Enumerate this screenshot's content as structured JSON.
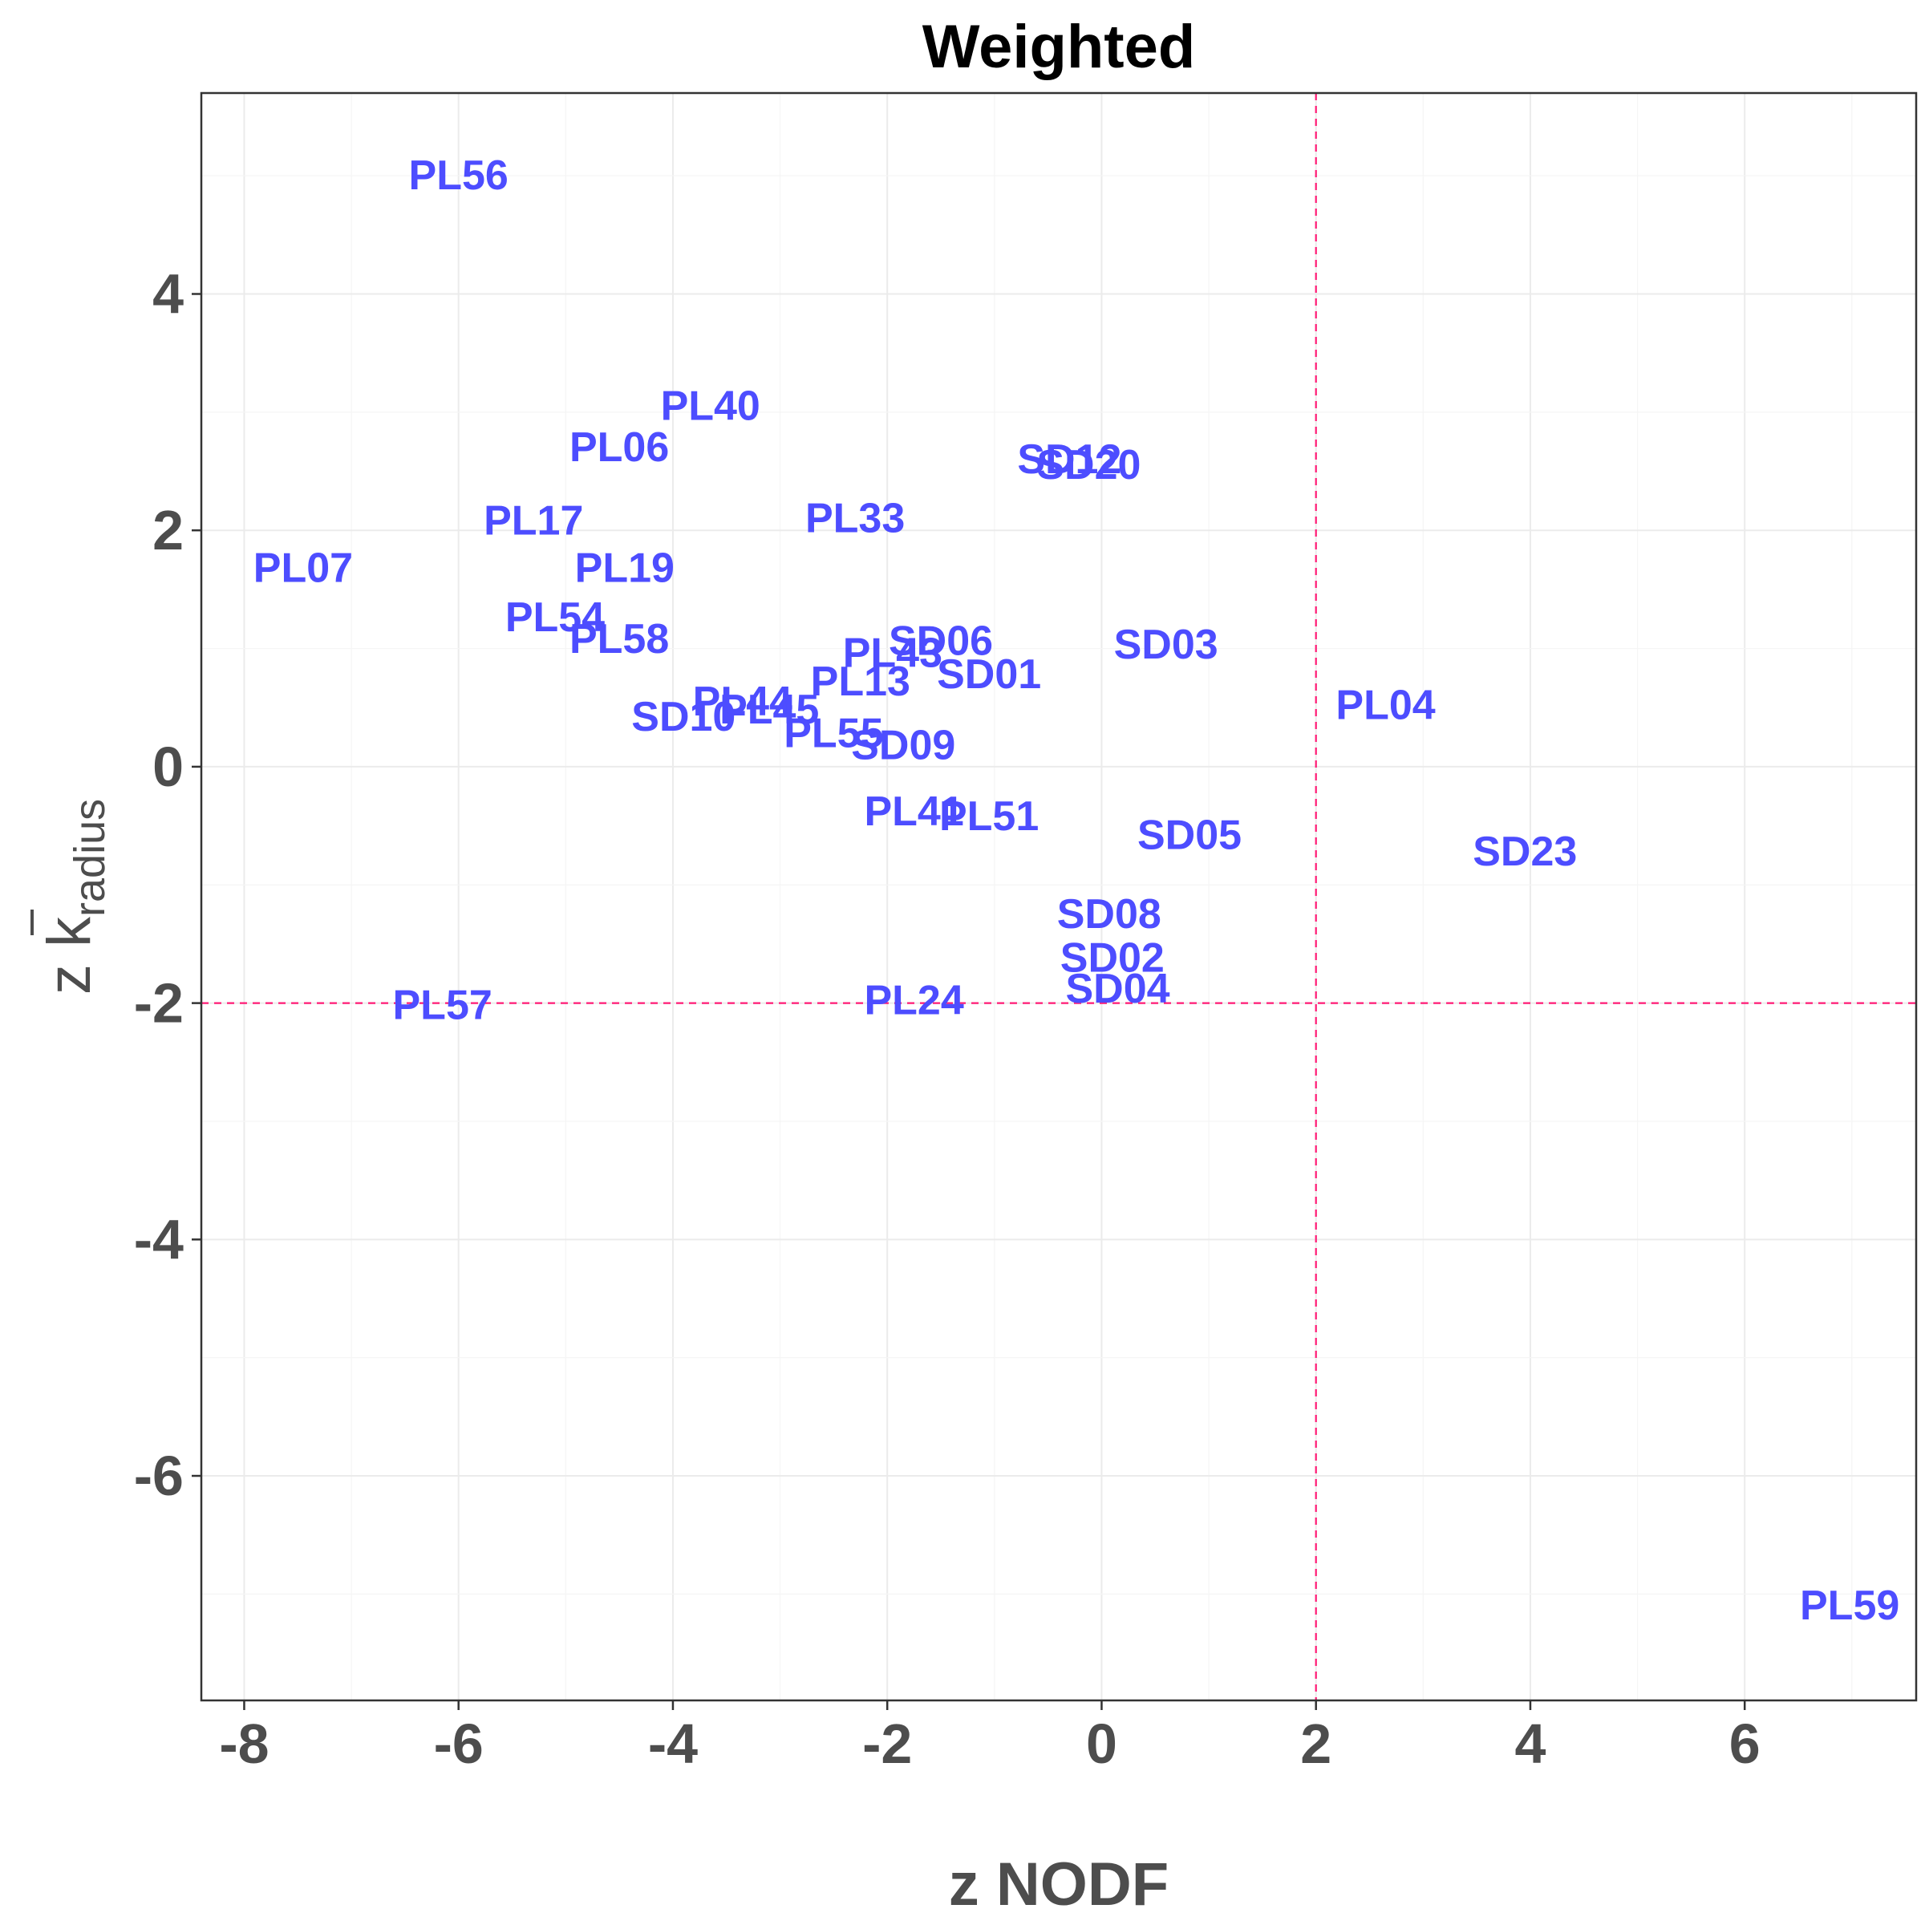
{
  "chart_data": {
    "type": "scatter",
    "title": "Weighted",
    "xlabel": "z NODF",
    "ylabel": {
      "prefix": "z ",
      "symbol": "k",
      "subscript": "radius"
    },
    "xlim": [
      -8.4,
      7.6
    ],
    "ylim": [
      -7.9,
      5.7
    ],
    "x_ticks": [
      -8,
      -6,
      -4,
      -2,
      0,
      2,
      4,
      6
    ],
    "y_ticks": [
      -6,
      -4,
      -2,
      0,
      2,
      4
    ],
    "grid": true,
    "reference_lines": {
      "vertical_x": 2,
      "horizontal_y": -2,
      "color": "#ff1a75"
    },
    "label_color": "#4d4dff",
    "points": [
      {
        "label": "PL56",
        "x": -6.0,
        "y": 5.0
      },
      {
        "label": "PL40",
        "x": -3.65,
        "y": 3.05
      },
      {
        "label": "PL06",
        "x": -4.5,
        "y": 2.7
      },
      {
        "label": "SD12",
        "x": -0.3,
        "y": 2.6
      },
      {
        "label": "SD20",
        "x": -0.12,
        "y": 2.55
      },
      {
        "label": "PL33",
        "x": -2.3,
        "y": 2.1
      },
      {
        "label": "PL17",
        "x": -5.3,
        "y": 2.08
      },
      {
        "label": "PL07",
        "x": -7.45,
        "y": 1.68
      },
      {
        "label": "PL19",
        "x": -4.45,
        "y": 1.68
      },
      {
        "label": "PL54",
        "x": -5.1,
        "y": 1.26
      },
      {
        "label": "PL58",
        "x": -4.5,
        "y": 1.08
      },
      {
        "label": "SD06",
        "x": -1.5,
        "y": 1.06
      },
      {
        "label": "SD03",
        "x": 0.6,
        "y": 1.03
      },
      {
        "label": "PL43",
        "x": -1.95,
        "y": 0.96
      },
      {
        "label": "SD01",
        "x": -1.05,
        "y": 0.78
      },
      {
        "label": "PL13",
        "x": -2.25,
        "y": 0.72
      },
      {
        "label": "PL04",
        "x": 2.65,
        "y": 0.52
      },
      {
        "label": "PL44",
        "x": -3.35,
        "y": 0.55
      },
      {
        "label": "PL45",
        "x": -3.1,
        "y": 0.48
      },
      {
        "label": "SD10",
        "x": -3.9,
        "y": 0.42
      },
      {
        "label": "PL55",
        "x": -2.5,
        "y": 0.28
      },
      {
        "label": "SD09",
        "x": -1.85,
        "y": 0.18
      },
      {
        "label": "PL41",
        "x": -1.75,
        "y": -0.38
      },
      {
        "label": "PL51",
        "x": -1.05,
        "y": -0.42
      },
      {
        "label": "SD05",
        "x": 0.82,
        "y": -0.58
      },
      {
        "label": "SD23",
        "x": 3.95,
        "y": -0.72
      },
      {
        "label": "SD08",
        "x": 0.07,
        "y": -1.25
      },
      {
        "label": "SD02",
        "x": 0.1,
        "y": -1.62
      },
      {
        "label": "SD04",
        "x": 0.15,
        "y": -1.88
      },
      {
        "label": "PL24",
        "x": -1.75,
        "y": -1.98
      },
      {
        "label": "PL57",
        "x": -6.15,
        "y": -2.02
      },
      {
        "label": "PL59",
        "x": 6.98,
        "y": -7.1
      }
    ]
  }
}
